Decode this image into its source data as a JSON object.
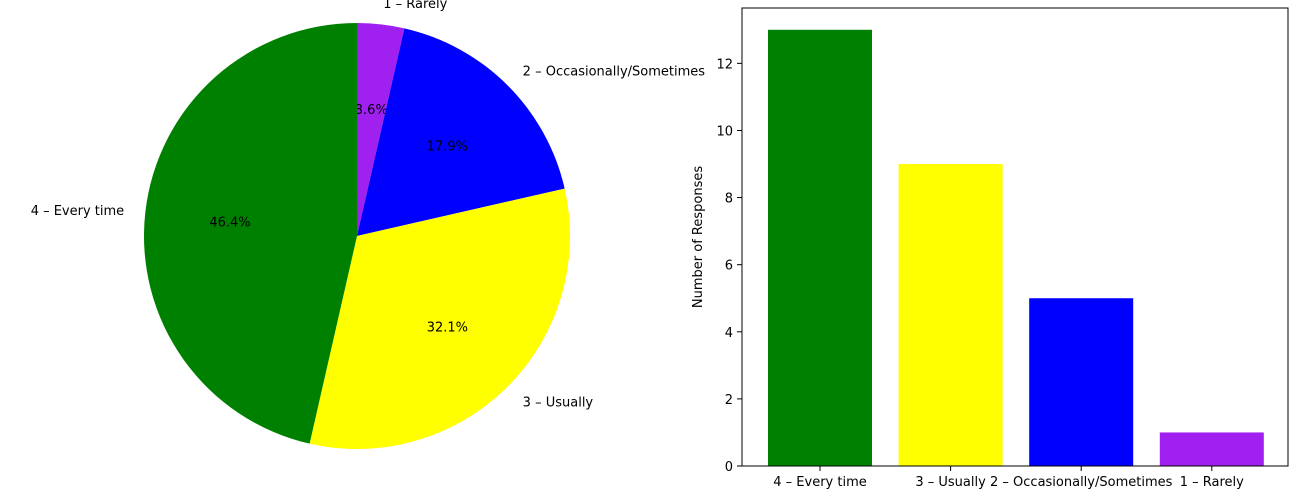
{
  "chart_data": [
    {
      "type": "pie",
      "categories": [
        "1 – Rarely",
        "2 – Occasionally/Sometimes",
        "3 – Usually",
        "4 – Every time"
      ],
      "values": [
        1,
        5,
        9,
        13
      ],
      "percent_labels": [
        "3.6%",
        "17.9%",
        "32.1%",
        "46.4%"
      ],
      "colors": [
        "#a020f0",
        "#0000ff",
        "#ffff00",
        "#008000"
      ],
      "start_angle_deg": 90,
      "direction": "clockwise",
      "title": ""
    },
    {
      "type": "bar",
      "categories": [
        "4 – Every time",
        "3 – Usually",
        "2 – Occasionally/Sometimes",
        "1 – Rarely"
      ],
      "values": [
        13,
        9,
        5,
        1
      ],
      "colors": [
        "#008000",
        "#ffff00",
        "#0000ff",
        "#a020f0"
      ],
      "title": "",
      "xlabel": "",
      "ylabel": "Number of Responses",
      "ylim": [
        0,
        13.65
      ],
      "yticks": [
        0,
        2,
        4,
        6,
        8,
        10,
        12
      ],
      "grid": false
    }
  ]
}
